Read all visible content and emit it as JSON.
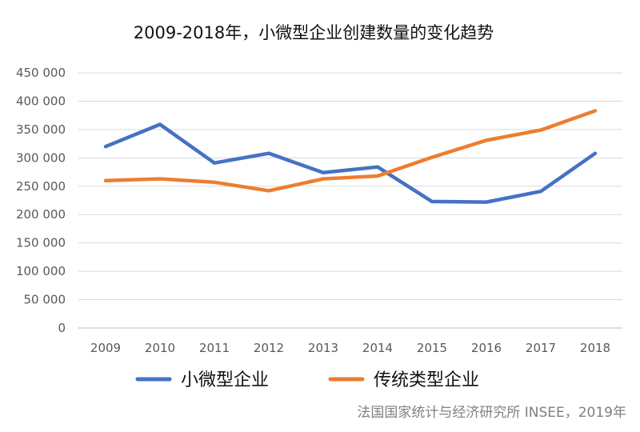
{
  "chart_data": {
    "type": "line",
    "title": "2009-2018年，小微型企业创建数量的变化趋势",
    "xlabel": "",
    "ylabel": "",
    "categories": [
      "2009",
      "2010",
      "2011",
      "2012",
      "2013",
      "2014",
      "2015",
      "2016",
      "2017",
      "2018"
    ],
    "series": [
      {
        "name": "小微型企业",
        "color": "#4472C4",
        "values": [
          320000,
          359000,
          291000,
          308000,
          274000,
          284000,
          223000,
          222000,
          241000,
          308000
        ]
      },
      {
        "name": "传统类型企业",
        "color": "#ED7D31",
        "values": [
          260000,
          263000,
          257000,
          242000,
          263000,
          268000,
          301000,
          331000,
          349000,
          383000
        ]
      }
    ],
    "ylim": [
      0,
      450000
    ],
    "yticks": [
      0,
      50000,
      100000,
      150000,
      200000,
      250000,
      300000,
      350000,
      400000,
      450000
    ],
    "ytick_labels": [
      "0",
      "50 000",
      "100 000",
      "150 000",
      "200 000",
      "250 000",
      "300 000",
      "350 000",
      "400 000",
      "450 000"
    ],
    "grid": true,
    "legend_position": "bottom"
  },
  "source": "法国国家统计与经济研究所 INSEE，2019年"
}
